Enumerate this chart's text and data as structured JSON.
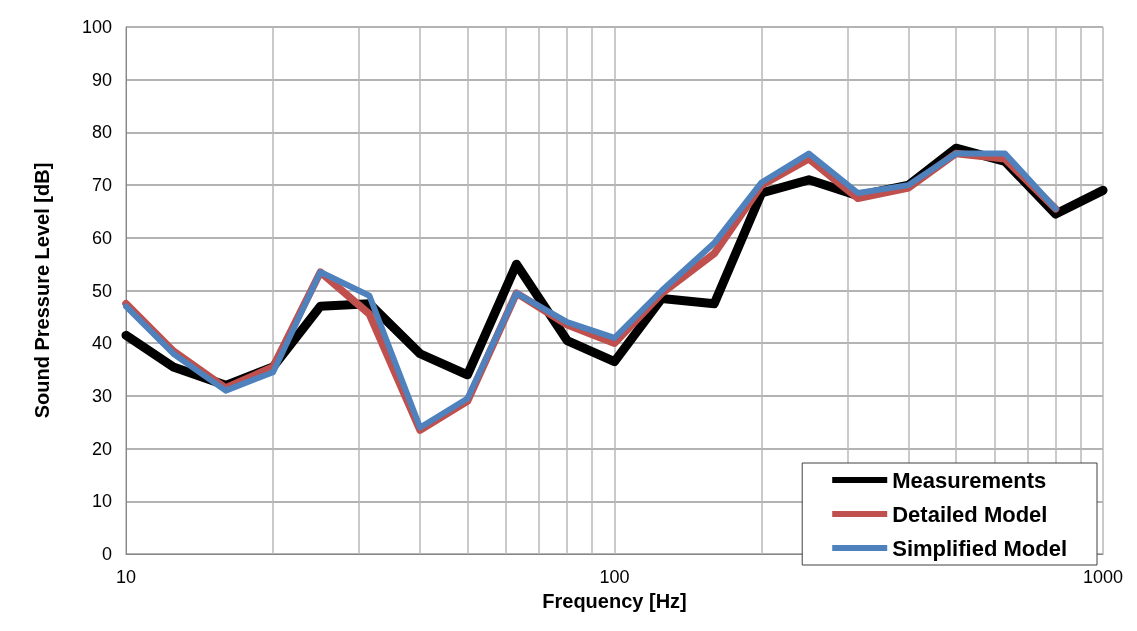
{
  "chart_data": {
    "type": "line",
    "xlabel": "Frequency [Hz]",
    "ylabel": "Sound Pressure Level [dB]",
    "log": "x",
    "xlim": [
      10,
      1000
    ],
    "ylim": [
      0,
      100
    ],
    "xticks": [
      10,
      {
        "value": 20,
        "label": null
      },
      {
        "value": 30,
        "label": null
      },
      {
        "value": 40,
        "label": null
      },
      {
        "value": 50,
        "label": null
      },
      {
        "value": 60,
        "label": null
      },
      {
        "value": 70,
        "label": null
      },
      {
        "value": 80,
        "label": null
      },
      {
        "value": 90,
        "label": null
      },
      100,
      {
        "value": 200,
        "label": null
      },
      {
        "value": 300,
        "label": null
      },
      {
        "value": 400,
        "label": null
      },
      {
        "value": 500,
        "label": null
      },
      {
        "value": 600,
        "label": null
      },
      {
        "value": 700,
        "label": null
      },
      {
        "value": 800,
        "label": null
      },
      {
        "value": 900,
        "label": null
      },
      1000
    ],
    "yticks": [
      0,
      10,
      20,
      30,
      40,
      50,
      60,
      70,
      80,
      90,
      100
    ],
    "grid": true,
    "legend": "bottom right",
    "marker": "none",
    "line_style": "solid",
    "x": [
      10,
      12.5,
      16,
      20,
      25,
      31.5,
      40,
      50,
      63,
      80,
      100,
      125,
      160,
      200,
      250,
      315,
      400,
      500,
      630,
      800,
      1000
    ],
    "series": [
      {
        "name": "Measurements",
        "color": "#000000",
        "values": [
          41.5,
          35.5,
          32,
          35.5,
          47,
          47.5,
          38,
          34,
          55,
          40.5,
          36.5,
          48.5,
          47.5,
          68.5,
          71,
          68,
          70,
          77,
          74.5,
          64.5,
          69
        ]
      },
      {
        "name": "Detailed Model",
        "color": "#c0504d",
        "values": [
          47.5,
          38.5,
          31.5,
          35.5,
          53.5,
          45.5,
          23.5,
          29,
          49.5,
          43.5,
          40,
          49.5,
          57,
          70,
          75,
          67.5,
          69.5,
          76,
          75,
          65.5,
          null
        ]
      },
      {
        "name": "Simplified Model",
        "color": "#4f81bd",
        "values": [
          47,
          38,
          31,
          34.5,
          53.5,
          49,
          24,
          29.5,
          49.5,
          44,
          41,
          50,
          59,
          70.5,
          76,
          68.5,
          70,
          76,
          76,
          65.5,
          null
        ]
      }
    ]
  }
}
